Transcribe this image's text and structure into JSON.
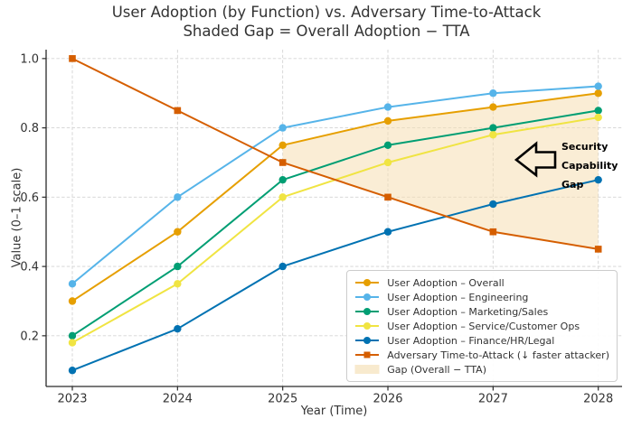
{
  "chart": {
    "title_line1": "User Adoption (by Function) vs. Adversary Time-to-Attack",
    "title_line2": "Shaded Gap = Overall Adoption − TTA",
    "xlabel": "Year (Time)",
    "ylabel": "Value (0–1 scale)"
  },
  "chart_data": {
    "type": "line",
    "x": [
      2023,
      2024,
      2025,
      2026,
      2027,
      2028
    ],
    "x_ticks": [
      "2023",
      "2024",
      "2025",
      "2026",
      "2027",
      "2028"
    ],
    "y_ticks": [
      "0.2",
      "0.4",
      "0.6",
      "0.8",
      "1.0"
    ],
    "y_tick_values": [
      0.2,
      0.4,
      0.6,
      0.8,
      1.0
    ],
    "ylim": [
      0.05,
      1.03
    ],
    "grid": true,
    "legend_position": "lower right",
    "series": [
      {
        "name": "User Adoption – Overall",
        "values": [
          0.3,
          0.5,
          0.75,
          0.82,
          0.86,
          0.9
        ],
        "color": "#E69F00",
        "marker": "circle"
      },
      {
        "name": "User Adoption – Engineering",
        "values": [
          0.35,
          0.6,
          0.8,
          0.86,
          0.9,
          0.92
        ],
        "color": "#56B4E9",
        "marker": "circle"
      },
      {
        "name": "User Adoption – Marketing/Sales",
        "values": [
          0.2,
          0.4,
          0.65,
          0.75,
          0.8,
          0.85
        ],
        "color": "#009E73",
        "marker": "circle"
      },
      {
        "name": "User Adoption – Service/Customer Ops",
        "values": [
          0.18,
          0.35,
          0.6,
          0.7,
          0.78,
          0.83
        ],
        "color": "#F0E442",
        "marker": "circle"
      },
      {
        "name": "User Adoption – Finance/HR/Legal",
        "values": [
          0.1,
          0.22,
          0.4,
          0.5,
          0.58,
          0.65
        ],
        "color": "#0072B2",
        "marker": "circle"
      },
      {
        "name": "Adversary Time-to-Attack (↓ faster attacker)",
        "values": [
          1.0,
          0.85,
          0.7,
          0.6,
          0.5,
          0.45
        ],
        "color": "#D55E00",
        "marker": "square"
      }
    ],
    "gap": {
      "label": "Gap (Overall − TTA)",
      "color": "#F5DEB3",
      "opacity": 0.55,
      "between": [
        "User Adoption – Overall",
        "Adversary Time-to-Attack (↓ faster attacker)"
      ],
      "x_range": [
        2025,
        2028
      ]
    }
  },
  "annotation": {
    "lines": [
      "Security",
      "Capability",
      "Gap"
    ]
  }
}
